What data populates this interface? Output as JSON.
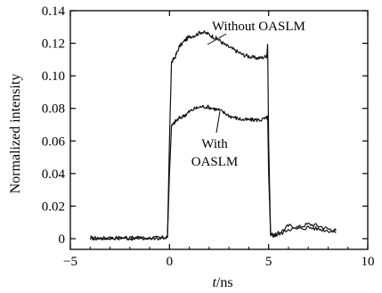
{
  "chart_data": {
    "type": "line",
    "title": "",
    "xlabel_italic": "t",
    "xlabel_unit": "/ns",
    "ylabel": "Normalized intensity",
    "xlim": [
      -5,
      10
    ],
    "ylim": [
      -0.005,
      0.14
    ],
    "xticks": [
      -5,
      0,
      5,
      10
    ],
    "xtick_labels": [
      "−5",
      "0",
      "5",
      "10"
    ],
    "yticks": [
      0,
      0.02,
      0.04,
      0.06,
      0.08,
      0.1,
      0.12,
      0.14
    ],
    "ytick_labels": [
      "0",
      "0.02",
      "0.04",
      "0.06",
      "0.08",
      "0.10",
      "0.12",
      "0.14"
    ],
    "grid": false,
    "series": [
      {
        "name": "Without OASLM",
        "x": [
          -4,
          -3.5,
          -3,
          -2.5,
          -2,
          -1.5,
          -1,
          -0.5,
          -0.1,
          0,
          0.1,
          0.3,
          0.5,
          0.8,
          1.0,
          1.3,
          1.6,
          1.9,
          2.2,
          2.5,
          2.8,
          3.1,
          3.4,
          3.7,
          4.0,
          4.3,
          4.6,
          4.9,
          4.95,
          5.0,
          5.1,
          5.3,
          5.6,
          6.0,
          6.5,
          7.0,
          7.5,
          8.0,
          8.4
        ],
        "values": [
          0.0005,
          0.0002,
          0.0004,
          0.0006,
          0.0003,
          0.0004,
          0.0005,
          0.0004,
          0.001,
          0.06,
          0.108,
          0.112,
          0.118,
          0.122,
          0.124,
          0.125,
          0.127,
          0.126,
          0.124,
          0.122,
          0.119,
          0.117,
          0.115,
          0.113,
          0.112,
          0.111,
          0.111,
          0.112,
          0.119,
          0.06,
          0.003,
          0.002,
          0.004,
          0.008,
          0.007,
          0.009,
          0.008,
          0.006,
          0.005
        ]
      },
      {
        "name": "With OASLM",
        "x": [
          -4,
          -3.5,
          -3,
          -2.5,
          -2,
          -1.5,
          -1,
          -0.5,
          -0.1,
          0,
          0.1,
          0.3,
          0.5,
          0.8,
          1.0,
          1.3,
          1.6,
          1.9,
          2.2,
          2.5,
          2.8,
          3.1,
          3.4,
          3.7,
          4.0,
          4.3,
          4.6,
          4.9,
          4.95,
          5.0,
          5.1,
          5.3,
          5.6,
          6.0,
          6.5,
          7.0,
          7.5,
          8.0,
          8.4
        ],
        "values": [
          0.0004,
          0.0002,
          0.0003,
          0.0005,
          0.0003,
          0.0004,
          0.0004,
          0.0003,
          0.001,
          0.04,
          0.069,
          0.072,
          0.074,
          0.076,
          0.078,
          0.08,
          0.081,
          0.081,
          0.08,
          0.079,
          0.077,
          0.075,
          0.074,
          0.073,
          0.073,
          0.073,
          0.073,
          0.074,
          0.075,
          0.04,
          0.002,
          0.002,
          0.003,
          0.006,
          0.006,
          0.007,
          0.006,
          0.005,
          0.004
        ]
      }
    ],
    "annotations": [
      {
        "lines": [
          "Without OASLM"
        ]
      },
      {
        "lines": [
          "With",
          "OASLM"
        ]
      }
    ],
    "colors": {
      "line": "#000000",
      "series_line": "#111111"
    }
  }
}
